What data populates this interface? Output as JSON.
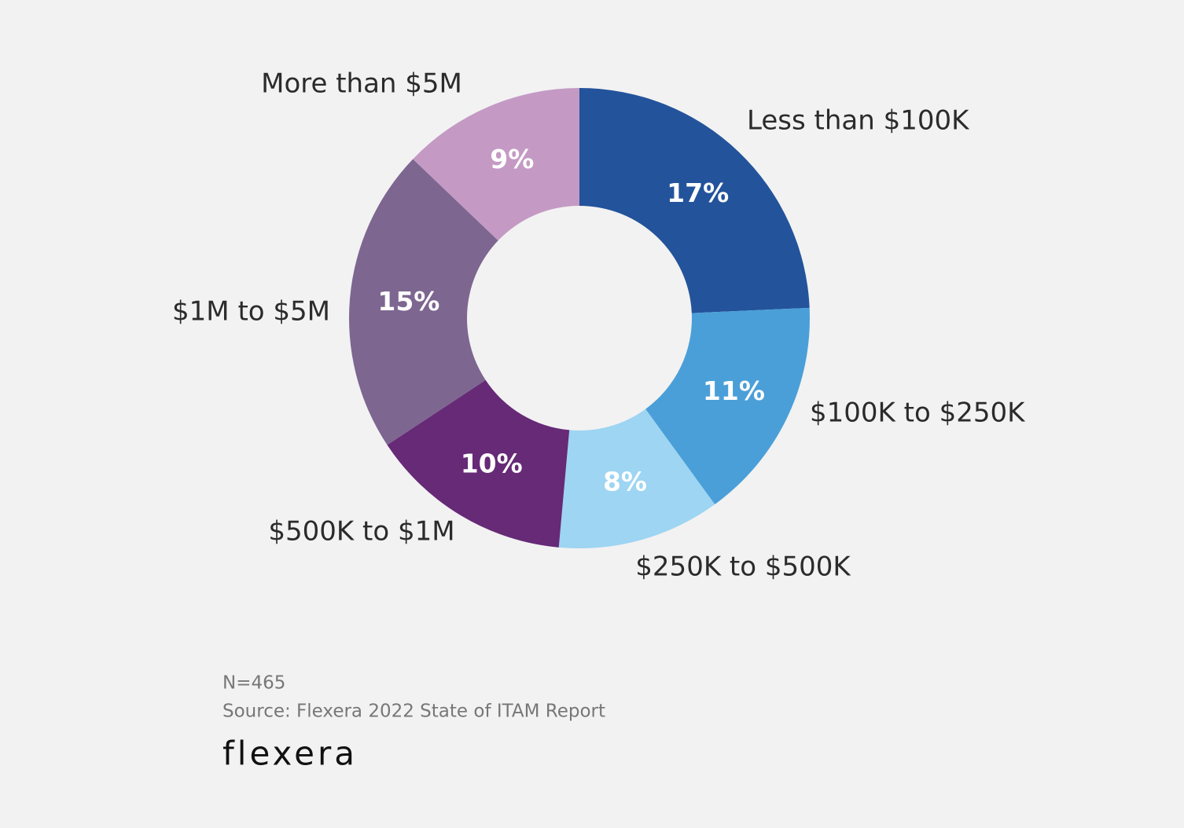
{
  "chart_data": {
    "type": "donut",
    "categories": [
      "Less than $100K",
      "$100K to $250K",
      "$250K to $500K",
      "$500K to $1M",
      "$1M to $5M",
      "More than $5M"
    ],
    "values": [
      17,
      11,
      8,
      10,
      15,
      9
    ],
    "value_labels": [
      "17%",
      "11%",
      "8%",
      "10%",
      "15%",
      "9%"
    ],
    "colors": [
      "#23539b",
      "#4a9fd8",
      "#9dd5f2",
      "#662a76",
      "#7d6690",
      "#c49ac4"
    ],
    "sample": "N=465",
    "source": "Source: Flexera 2022 State of ITAM Report",
    "logo": "flexera"
  }
}
